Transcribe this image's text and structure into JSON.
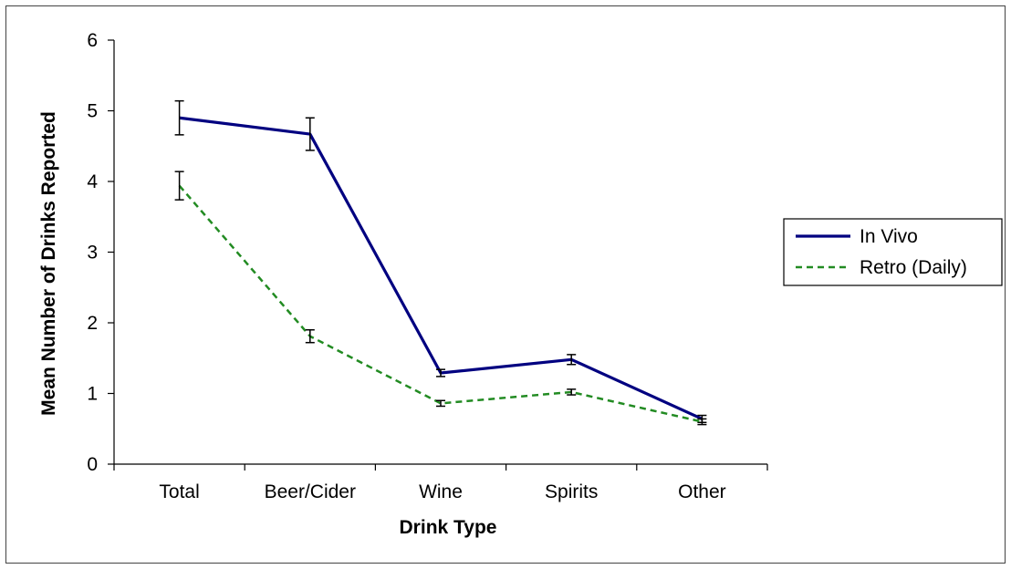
{
  "chart_data": {
    "type": "line",
    "title": "",
    "xlabel": "Drink Type",
    "ylabel": "Mean Number of Drinks Reported",
    "categories": [
      "Total",
      "Beer/Cider",
      "Wine",
      "Spirits",
      "Other"
    ],
    "ylim": [
      0,
      6
    ],
    "yticks": [
      0,
      1,
      2,
      3,
      4,
      5,
      6
    ],
    "grid": false,
    "legend_position": "right",
    "error_bars": true,
    "series": [
      {
        "name": "In Vivo",
        "values": [
          4.9,
          4.67,
          1.29,
          1.48,
          0.64
        ],
        "error": [
          0.24,
          0.23,
          0.05,
          0.07,
          0.05
        ],
        "color": "#000080",
        "style": "solid"
      },
      {
        "name": "Retro (Daily)",
        "values": [
          3.94,
          1.81,
          0.86,
          1.02,
          0.6
        ],
        "error": [
          0.2,
          0.09,
          0.04,
          0.04,
          0.04
        ],
        "color": "#228B22",
        "style": "dashed"
      }
    ]
  }
}
